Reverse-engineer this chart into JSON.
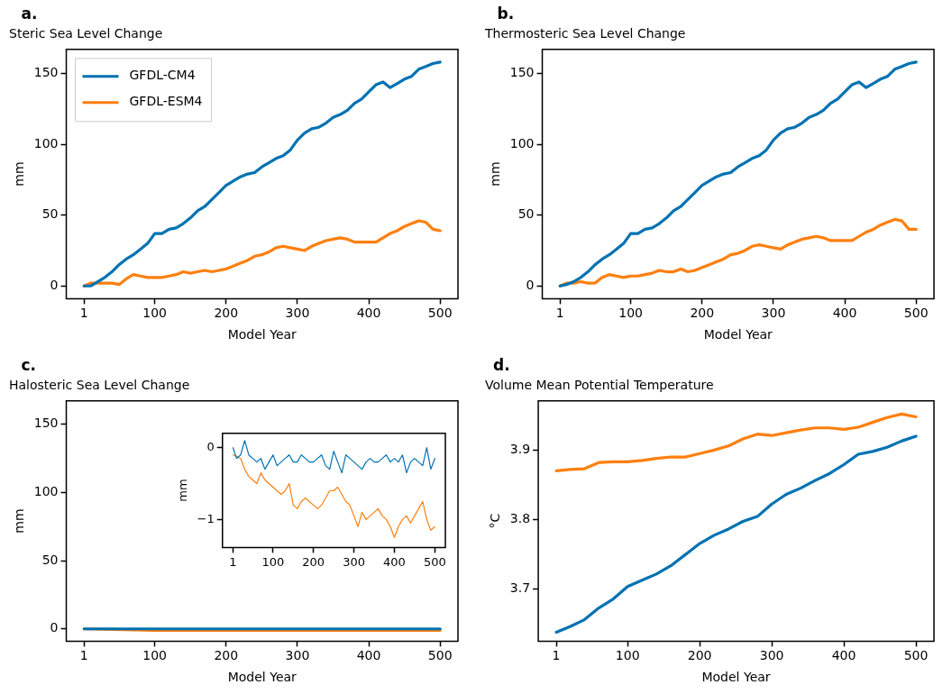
{
  "chart_data": [
    {
      "type": "line",
      "title": "Steric Sea Level Change",
      "xlabel": "Model Year",
      "ylabel": "mm",
      "annotations": [
        "a."
      ],
      "legend": "top left",
      "xlim": [
        -24,
        525
      ],
      "xticks": [
        1,
        100,
        200,
        300,
        400,
        500
      ],
      "ylim": [
        -9,
        167
      ],
      "yticks": [
        0,
        50,
        100,
        150
      ],
      "x": [
        1,
        10,
        20,
        30,
        40,
        50,
        60,
        70,
        80,
        90,
        100,
        110,
        120,
        130,
        140,
        150,
        160,
        170,
        180,
        190,
        200,
        210,
        220,
        230,
        240,
        250,
        260,
        270,
        280,
        290,
        300,
        310,
        320,
        330,
        340,
        350,
        360,
        370,
        380,
        390,
        400,
        410,
        420,
        430,
        440,
        450,
        460,
        470,
        480,
        490,
        500
      ],
      "series": [
        {
          "name": "GFDL-CM4",
          "color": "#0072b2",
          "values": [
            0,
            0,
            3,
            6,
            10,
            15,
            19,
            22,
            26,
            30,
            37,
            37,
            40,
            41,
            44,
            48,
            53,
            56,
            61,
            66,
            71,
            74,
            77,
            79,
            80,
            84,
            87,
            90,
            92,
            96,
            103,
            108,
            111,
            112,
            115,
            119,
            121,
            124,
            129,
            132,
            137,
            142,
            144,
            140,
            143,
            146,
            148,
            153,
            155,
            157,
            158
          ]
        },
        {
          "name": "GFDL-ESM4",
          "color": "#ff7f0e",
          "values": [
            0,
            2,
            2,
            2,
            2,
            1,
            5,
            8,
            7,
            6,
            6,
            6,
            7,
            8,
            10,
            9,
            10,
            11,
            10,
            11,
            12,
            14,
            16,
            18,
            21,
            22,
            24,
            27,
            28,
            27,
            26,
            25,
            28,
            30,
            32,
            33,
            34,
            33,
            31,
            31,
            31,
            31,
            34,
            37,
            39,
            42,
            44,
            46,
            45,
            40,
            39
          ]
        }
      ]
    },
    {
      "type": "line",
      "title": "Thermosteric Sea Level Change",
      "xlabel": "Model Year",
      "ylabel": "mm",
      "annotations": [
        "b."
      ],
      "xlim": [
        -24,
        525
      ],
      "xticks": [
        1,
        100,
        200,
        300,
        400,
        500
      ],
      "ylim": [
        -9,
        167
      ],
      "yticks": [
        0,
        50,
        100,
        150
      ],
      "x": [
        1,
        10,
        20,
        30,
        40,
        50,
        60,
        70,
        80,
        90,
        100,
        110,
        120,
        130,
        140,
        150,
        160,
        170,
        180,
        190,
        200,
        210,
        220,
        230,
        240,
        250,
        260,
        270,
        280,
        290,
        300,
        310,
        320,
        330,
        340,
        350,
        360,
        370,
        380,
        390,
        400,
        410,
        420,
        430,
        440,
        450,
        460,
        470,
        480,
        490,
        500
      ],
      "series": [
        {
          "color": "#0072b2",
          "values": [
            0,
            1,
            3,
            6,
            10,
            15,
            19,
            22,
            26,
            30,
            37,
            37,
            40,
            41,
            44,
            48,
            53,
            56,
            61,
            66,
            71,
            74,
            77,
            79,
            80,
            84,
            87,
            90,
            92,
            96,
            103,
            108,
            111,
            112,
            115,
            119,
            121,
            124,
            129,
            132,
            137,
            142,
            144,
            140,
            143,
            146,
            148,
            153,
            155,
            157,
            158
          ]
        },
        {
          "color": "#ff7f0e",
          "values": [
            0,
            2,
            2,
            3,
            2,
            2,
            6,
            8,
            7,
            6,
            7,
            7,
            8,
            9,
            11,
            10,
            10,
            12,
            10,
            11,
            13,
            15,
            17,
            19,
            22,
            23,
            25,
            28,
            29,
            28,
            27,
            26,
            29,
            31,
            33,
            34,
            35,
            34,
            32,
            32,
            32,
            32,
            35,
            38,
            40,
            43,
            45,
            47,
            46,
            40,
            40
          ]
        }
      ]
    },
    {
      "type": "line",
      "title": "Halosteric Sea Level Change",
      "xlabel": "Model Year",
      "ylabel": "mm",
      "annotations": [
        "c."
      ],
      "xlim": [
        -24,
        525
      ],
      "xticks": [
        1,
        100,
        200,
        300,
        400,
        500
      ],
      "ylim": [
        -9,
        167
      ],
      "yticks": [
        0,
        50,
        100,
        150
      ],
      "x": [
        1,
        100,
        200,
        300,
        400,
        500
      ],
      "series": [
        {
          "color": "#0072b2",
          "values": [
            0,
            0,
            0,
            0,
            0,
            0
          ]
        },
        {
          "color": "#ff7f0e",
          "values": [
            0,
            -1,
            -1,
            -1,
            -1,
            -1
          ]
        }
      ]
    },
    {
      "type": "line",
      "ylabel": "mm",
      "xlim": [
        -25,
        526
      ],
      "xticks": [
        1,
        100,
        200,
        300,
        400,
        500
      ],
      "ylim": [
        -1.39,
        0.2
      ],
      "yticks": [
        {
          "value": -1,
          "label": "−1"
        },
        0
      ],
      "x": [
        1,
        10,
        20,
        30,
        40,
        50,
        60,
        70,
        80,
        90,
        100,
        110,
        120,
        130,
        140,
        150,
        160,
        170,
        180,
        190,
        200,
        210,
        220,
        230,
        240,
        250,
        260,
        270,
        280,
        290,
        300,
        310,
        320,
        330,
        340,
        350,
        360,
        370,
        380,
        390,
        400,
        410,
        420,
        430,
        440,
        450,
        460,
        470,
        480,
        490,
        500
      ],
      "series": [
        {
          "color": "#0072b2",
          "values": [
            0,
            -0.15,
            -0.1,
            0.1,
            -0.1,
            -0.15,
            -0.2,
            -0.15,
            -0.3,
            -0.2,
            -0.1,
            -0.25,
            -0.2,
            -0.15,
            -0.1,
            -0.2,
            -0.2,
            -0.1,
            -0.15,
            -0.2,
            -0.2,
            -0.15,
            -0.1,
            -0.25,
            -0.3,
            -0.05,
            -0.2,
            -0.35,
            -0.1,
            -0.15,
            -0.2,
            -0.25,
            -0.3,
            -0.2,
            -0.15,
            -0.2,
            -0.2,
            -0.15,
            -0.1,
            -0.2,
            -0.15,
            -0.2,
            -0.1,
            -0.35,
            -0.2,
            -0.15,
            -0.2,
            -0.25,
            0,
            -0.3,
            -0.15
          ]
        },
        {
          "color": "#ff7f0e",
          "values": [
            -0.1,
            -0.12,
            -0.15,
            -0.3,
            -0.4,
            -0.45,
            -0.5,
            -0.35,
            -0.45,
            -0.5,
            -0.55,
            -0.6,
            -0.65,
            -0.6,
            -0.5,
            -0.8,
            -0.85,
            -0.75,
            -0.7,
            -0.75,
            -0.8,
            -0.85,
            -0.8,
            -0.7,
            -0.6,
            -0.6,
            -0.55,
            -0.65,
            -0.75,
            -0.8,
            -0.95,
            -1.1,
            -0.9,
            -1.0,
            -0.95,
            -0.9,
            -0.85,
            -0.95,
            -1.0,
            -1.1,
            -1.25,
            -1.1,
            -1.0,
            -0.95,
            -1.05,
            -0.95,
            -0.85,
            -0.75,
            -1.0,
            -1.15,
            -1.1
          ]
        }
      ]
    },
    {
      "type": "line",
      "title": "Volume Mean Potential Temperature",
      "xlabel": "Model Year",
      "ylabel": "°C",
      "annotations": [
        "d."
      ],
      "xlim": [
        -24,
        525
      ],
      "xticks": [
        1,
        100,
        200,
        300,
        400,
        500
      ],
      "ylim": [
        3.624,
        3.971
      ],
      "yticks": [
        3.7,
        3.8,
        3.9
      ],
      "x": [
        1,
        20,
        40,
        60,
        80,
        100,
        120,
        140,
        160,
        180,
        200,
        220,
        240,
        260,
        280,
        300,
        320,
        340,
        360,
        380,
        400,
        420,
        440,
        460,
        480,
        500
      ],
      "series": [
        {
          "color": "#0072b2",
          "values": [
            3.637,
            3.645,
            3.655,
            3.672,
            3.685,
            3.703,
            3.712,
            3.721,
            3.733,
            3.749,
            3.765,
            3.777,
            3.786,
            3.797,
            3.804,
            3.822,
            3.836,
            3.845,
            3.856,
            3.866,
            3.879,
            3.894,
            3.898,
            3.904,
            3.913,
            3.92
          ]
        },
        {
          "color": "#ff7f0e",
          "values": [
            3.87,
            3.872,
            3.873,
            3.882,
            3.883,
            3.883,
            3.885,
            3.888,
            3.89,
            3.89,
            3.895,
            3.9,
            3.906,
            3.916,
            3.923,
            3.921,
            3.925,
            3.929,
            3.932,
            3.932,
            3.93,
            3.933,
            3.94,
            3.947,
            3.952,
            3.948
          ]
        }
      ]
    }
  ]
}
